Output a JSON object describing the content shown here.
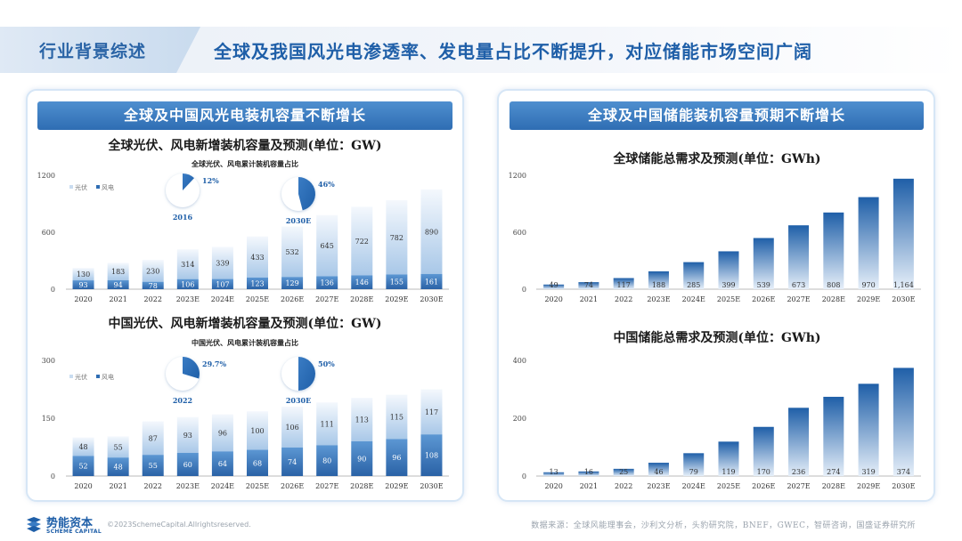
{
  "header": {
    "tag": "行业背景综述",
    "title": "全球及我国风光电渗透率、发电量占比不断提升，对应储能市场空间广阔"
  },
  "left_panel": {
    "banner": "全球及中国风光电装机容量不断增长"
  },
  "right_panel": {
    "banner": "全球及中国储能装机容量预期不断增长"
  },
  "footer": {
    "logo_cn": "势能资本",
    "logo_en": "SCHEME CAPITAL",
    "copyright": "©2023SchemeCapital.Allrightsreserved.",
    "source": "数据来源：全球风能理事会，沙利文分析，头豹研究院，BNEF，GWEC，智研咨询，国盛证券研究所"
  },
  "colors": {
    "primary": "#2f6db3",
    "light": "#c9dcf0",
    "title": "#1f5fa8"
  },
  "chart_data": [
    {
      "id": "global_wind_solar",
      "type": "bar",
      "stacked": true,
      "title": "全球光伏、风电新增装机容量及预测(单位：GW)",
      "categories": [
        "2020",
        "2021",
        "2022",
        "2023E",
        "2024E",
        "2025E",
        "2026E",
        "2027E",
        "2028E",
        "2029E",
        "2030E"
      ],
      "series": [
        {
          "name": "风电",
          "values": [
            93,
            94,
            78,
            106,
            107,
            123,
            129,
            136,
            146,
            155,
            161
          ]
        },
        {
          "name": "光伏",
          "values": [
            130,
            183,
            230,
            314,
            339,
            433,
            532,
            645,
            722,
            782,
            890
          ]
        }
      ],
      "yticks": [
        "0",
        "600",
        "1200"
      ],
      "ylim": [
        0,
        1200
      ],
      "legend": [
        "光伏",
        "风电"
      ],
      "inset": {
        "title": "全球光伏、风电累计装机容量占比",
        "pies": [
          {
            "label": "2016",
            "value_label": "12%",
            "share": 0.12
          },
          {
            "label": "2030E",
            "value_label": "46%",
            "share": 0.46
          }
        ]
      }
    },
    {
      "id": "china_wind_solar",
      "type": "bar",
      "stacked": true,
      "title": "中国光伏、风电新增装机容量及预测(单位：GW)",
      "categories": [
        "2020",
        "2021",
        "2022",
        "2023E",
        "2024E",
        "2025E",
        "2026E",
        "2027E",
        "2028E",
        "2029E",
        "2030E"
      ],
      "series": [
        {
          "name": "风电",
          "values": [
            52,
            48,
            55,
            60,
            64,
            68,
            74,
            80,
            90,
            96,
            108
          ]
        },
        {
          "name": "光伏",
          "values": [
            48,
            55,
            87,
            93,
            96,
            100,
            106,
            111,
            113,
            115,
            117
          ]
        }
      ],
      "yticks": [
        "0",
        "150",
        "300"
      ],
      "ylim": [
        0,
        300
      ],
      "legend": [
        "光伏",
        "风电"
      ],
      "inset": {
        "title": "中国光伏、风电累计装机容量占比",
        "pies": [
          {
            "label": "2022",
            "value_label": "29.7%",
            "share": 0.297
          },
          {
            "label": "2030E",
            "value_label": "50%",
            "share": 0.5
          }
        ]
      }
    },
    {
      "id": "global_storage",
      "type": "bar",
      "title": "全球储能总需求及预测(单位：GWh)",
      "categories": [
        "2020",
        "2021",
        "2022",
        "2023E",
        "2024E",
        "2025E",
        "2026E",
        "2027E",
        "2028E",
        "2029E",
        "2030E"
      ],
      "values": [
        49,
        74,
        117,
        188,
        285,
        399,
        539,
        673,
        808,
        970,
        1164
      ],
      "yticks": [
        "0",
        "600",
        "1200"
      ],
      "ylim": [
        0,
        1200
      ]
    },
    {
      "id": "china_storage",
      "type": "bar",
      "title": "中国储能总需求及预测(单位：GWh)",
      "categories": [
        "2020",
        "2021",
        "2022",
        "2023E",
        "2024E",
        "2025E",
        "2026E",
        "2027E",
        "2028E",
        "2029E",
        "2030E"
      ],
      "values": [
        13,
        16,
        25,
        46,
        79,
        119,
        170,
        236,
        274,
        319,
        374
      ],
      "yticks": [
        "0",
        "200",
        "400"
      ],
      "ylim": [
        0,
        400
      ]
    }
  ]
}
